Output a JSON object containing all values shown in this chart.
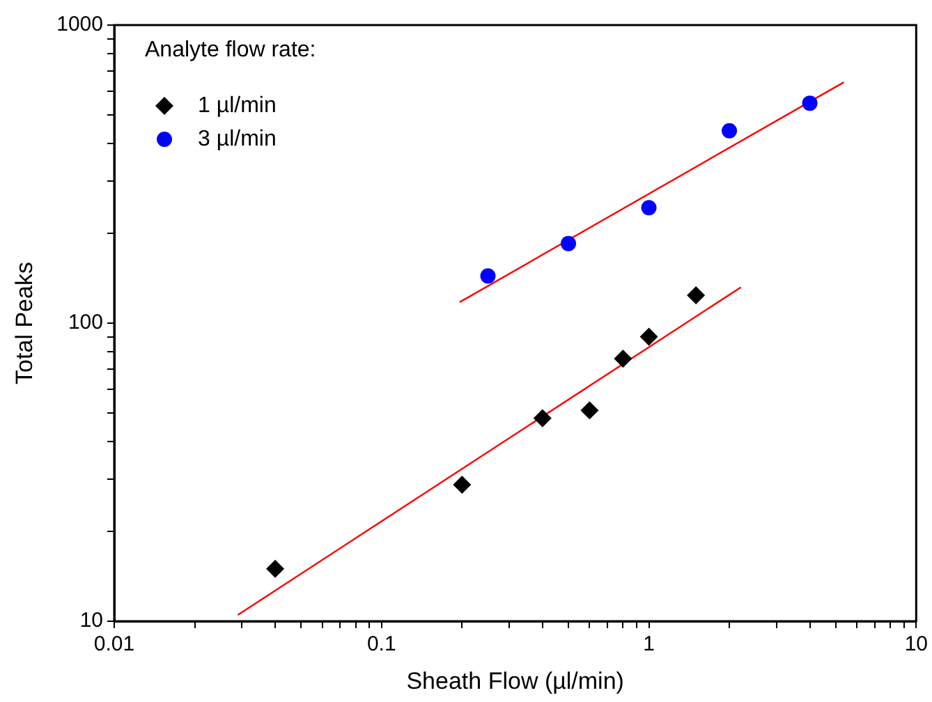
{
  "chart_data": {
    "type": "scatter",
    "xlabel": "Sheath Flow (µl/min)",
    "ylabel": "Total Peaks",
    "legend_title": "Analyte flow rate:",
    "legend": "top left",
    "log": "xy",
    "grid": false,
    "xlim": [
      0.01,
      10
    ],
    "ylim": [
      10,
      1000
    ],
    "xticks": [
      0.01,
      {
        "value": 0.02,
        "label": null
      },
      {
        "value": 0.03,
        "label": null
      },
      {
        "value": 0.04,
        "label": null
      },
      {
        "value": 0.05,
        "label": null
      },
      {
        "value": 0.06,
        "label": null
      },
      {
        "value": 0.07,
        "label": null
      },
      {
        "value": 0.08,
        "label": null
      },
      {
        "value": 0.09,
        "label": null
      },
      0.1,
      {
        "value": 0.2,
        "label": null
      },
      {
        "value": 0.3,
        "label": null
      },
      {
        "value": 0.4,
        "label": null
      },
      {
        "value": 0.5,
        "label": null
      },
      {
        "value": 0.6,
        "label": null
      },
      {
        "value": 0.7,
        "label": null
      },
      {
        "value": 0.8,
        "label": null
      },
      {
        "value": 0.9,
        "label": null
      },
      1,
      {
        "value": 2,
        "label": null
      },
      {
        "value": 3,
        "label": null
      },
      {
        "value": 4,
        "label": null
      },
      {
        "value": 5,
        "label": null
      },
      {
        "value": 6,
        "label": null
      },
      {
        "value": 7,
        "label": null
      },
      {
        "value": 8,
        "label": null
      },
      {
        "value": 9,
        "label": null
      },
      10
    ],
    "yticks": [
      10,
      {
        "value": 20,
        "label": null
      },
      {
        "value": 30,
        "label": null
      },
      {
        "value": 40,
        "label": null
      },
      {
        "value": 50,
        "label": null
      },
      {
        "value": 60,
        "label": null
      },
      {
        "value": 70,
        "label": null
      },
      {
        "value": 80,
        "label": null
      },
      {
        "value": 90,
        "label": null
      },
      100,
      {
        "value": 200,
        "label": null
      },
      {
        "value": 300,
        "label": null
      },
      {
        "value": 400,
        "label": null
      },
      {
        "value": 500,
        "label": null
      },
      {
        "value": 600,
        "label": null
      },
      {
        "value": 700,
        "label": null
      },
      {
        "value": 800,
        "label": null
      },
      {
        "value": 900,
        "label": null
      },
      1000
    ],
    "series": [
      {
        "name": "1 µl/min",
        "color": "#000000",
        "marker": "diamond",
        "x": [
          0.04,
          0.2,
          0.4,
          0.6,
          0.8,
          1,
          1.5
        ],
        "values": [
          15,
          28.7,
          48,
          51,
          76,
          90,
          124
        ]
      },
      {
        "name": "3 µl/min",
        "color": "#0000ff",
        "marker": "circle",
        "x": [
          0.25,
          0.5,
          1,
          2,
          4
        ],
        "values": [
          144,
          185,
          244,
          442,
          547
        ]
      },
      {
        "type": "line",
        "color": "#ff0000",
        "marker": "none",
        "x": [
          0.029,
          2.21
        ],
        "values": [
          10.5,
          132
        ]
      },
      {
        "type": "line",
        "color": "#ff0000",
        "marker": "none",
        "x": [
          0.196,
          5.36
        ],
        "values": [
          117.6,
          643
        ]
      }
    ]
  }
}
